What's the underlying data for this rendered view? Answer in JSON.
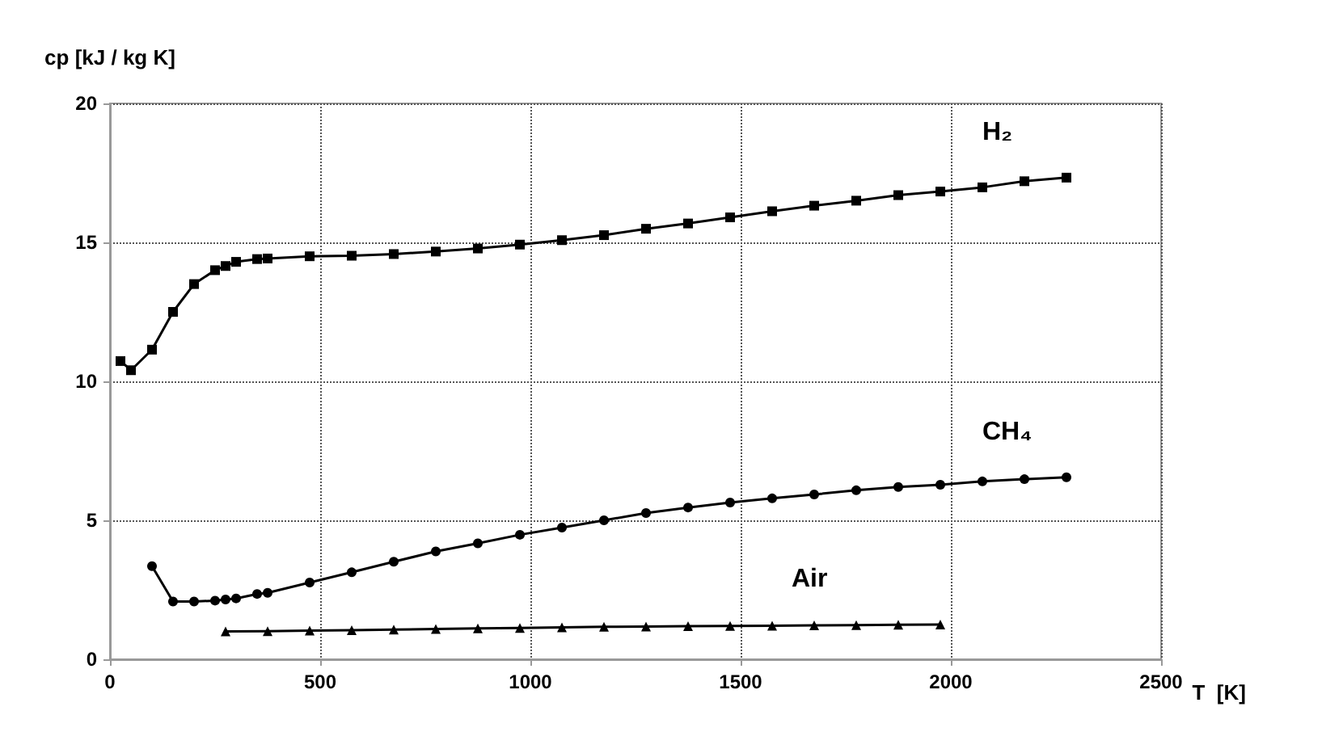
{
  "chart_data": {
    "type": "line",
    "xlabel": "T  [K]",
    "ylabel": "cp [kJ / kg K]",
    "xlim": [
      0,
      2500
    ],
    "ylim": [
      0,
      20
    ],
    "xticks": [
      0,
      500,
      1000,
      1500,
      2000,
      2500
    ],
    "yticks": [
      0,
      5,
      10,
      15,
      20
    ],
    "grid": true,
    "line_style": "solid",
    "series": [
      {
        "name": "H₂",
        "color": "#000000",
        "marker": "square",
        "x": [
          25,
          50,
          100,
          150,
          200,
          250,
          275,
          300,
          350,
          375,
          475,
          575,
          675,
          775,
          875,
          975,
          1075,
          1175,
          1275,
          1375,
          1475,
          1575,
          1675,
          1775,
          1875,
          1975,
          2075,
          2175,
          2275
        ],
        "values": [
          10.73,
          10.4,
          11.14,
          12.5,
          13.5,
          14.0,
          14.15,
          14.3,
          14.4,
          14.42,
          14.5,
          14.52,
          14.58,
          14.67,
          14.78,
          14.92,
          15.08,
          15.26,
          15.49,
          15.68,
          15.9,
          16.12,
          16.32,
          16.5,
          16.7,
          16.83,
          16.98,
          17.2,
          17.33
        ]
      },
      {
        "name": "CH₄",
        "color": "#000000",
        "marker": "circle",
        "x": [
          100,
          150,
          200,
          250,
          275,
          300,
          350,
          375,
          475,
          575,
          675,
          775,
          875,
          975,
          1075,
          1175,
          1275,
          1375,
          1475,
          1575,
          1675,
          1775,
          1875,
          1975,
          2075,
          2175,
          2275
        ],
        "values": [
          3.35,
          2.08,
          2.08,
          2.11,
          2.15,
          2.19,
          2.35,
          2.39,
          2.76,
          3.13,
          3.51,
          3.88,
          4.17,
          4.48,
          4.74,
          5.0,
          5.26,
          5.46,
          5.64,
          5.79,
          5.93,
          6.08,
          6.2,
          6.28,
          6.4,
          6.48,
          6.55
        ]
      },
      {
        "name": "Air",
        "color": "#000000",
        "marker": "triangle",
        "x": [
          275,
          375,
          475,
          575,
          675,
          775,
          875,
          975,
          1075,
          1175,
          1275,
          1375,
          1475,
          1575,
          1675,
          1775,
          1875,
          1975
        ],
        "values": [
          1.0,
          1.01,
          1.03,
          1.05,
          1.07,
          1.09,
          1.11,
          1.13,
          1.15,
          1.17,
          1.18,
          1.19,
          1.2,
          1.21,
          1.22,
          1.23,
          1.24,
          1.25
        ]
      }
    ]
  }
}
